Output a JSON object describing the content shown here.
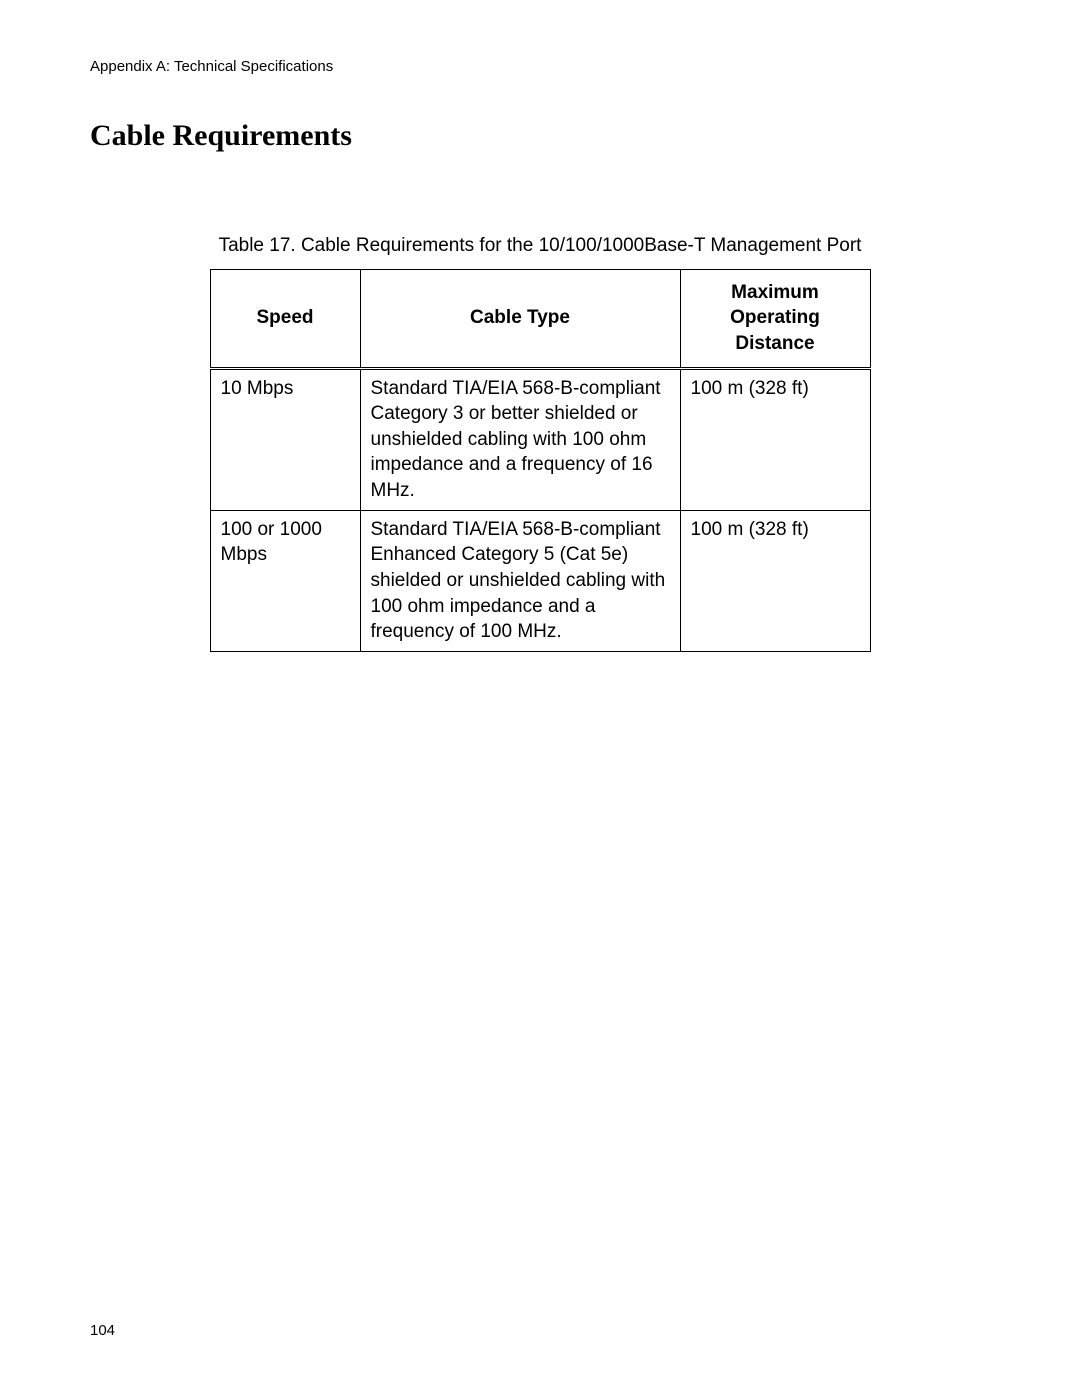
{
  "header": "Appendix A: Technical Specifications",
  "title": "Cable Requirements",
  "caption": "Table 17. Cable Requirements for the 10/100/1000Base-T Management Port",
  "pageNumber": "104",
  "table": {
    "columns": [
      "Speed",
      "Cable Type",
      "Maximum Operating Distance"
    ],
    "rows": [
      {
        "speed": "10 Mbps",
        "cable": "Standard TIA/EIA 568-B-compliant Category 3 or better shielded or unshielded cabling with 100 ohm impedance and a frequency of 16 MHz.",
        "distance": "100 m (328 ft)"
      },
      {
        "speed": "100 or 1000 Mbps",
        "cable": "Standard TIA/EIA 568-B-compliant Enhanced Category 5 (Cat 5e) shielded or unshielded cabling with 100 ohm impedance and a frequency of 100 MHz.",
        "distance": "100 m (328 ft)"
      }
    ]
  }
}
